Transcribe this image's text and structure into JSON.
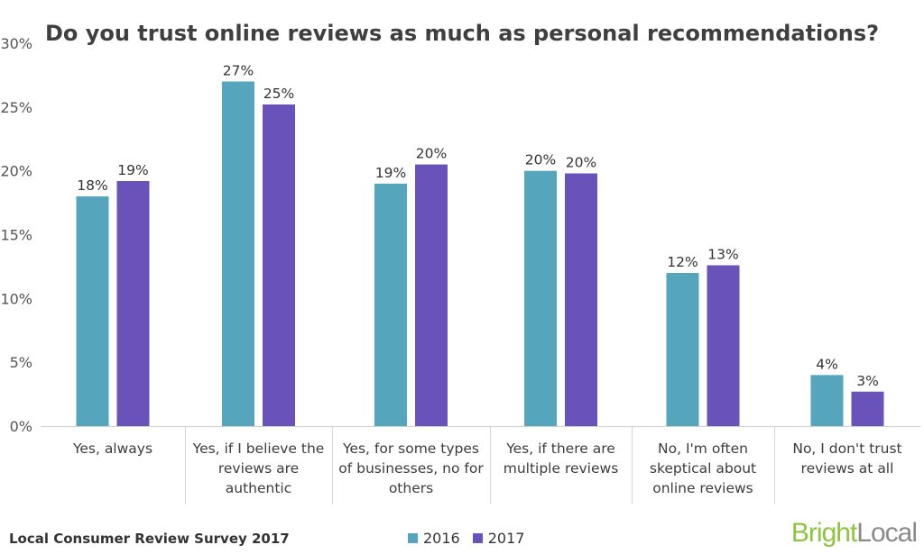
{
  "chart_data": {
    "type": "bar",
    "title": "Do you trust online reviews as much as personal recommendations?",
    "categories": [
      [
        "Yes, always"
      ],
      [
        "Yes, if I believe the",
        "reviews are",
        "authentic"
      ],
      [
        "Yes, for some types",
        "of businesses, no for",
        "others"
      ],
      [
        "Yes, if there are",
        "multiple reviews"
      ],
      [
        "No, I'm often",
        "skeptical about",
        "online reviews"
      ],
      [
        "No, I don't trust",
        "reviews at all"
      ]
    ],
    "series": [
      {
        "name": "2016",
        "color": "#55a5bd",
        "values": [
          18,
          27,
          19,
          20,
          12,
          4
        ],
        "labels": [
          "18%",
          "27%",
          "19%",
          "20%",
          "12%",
          "4%"
        ]
      },
      {
        "name": "2017",
        "color": "#6a52bb",
        "values": [
          19.2,
          25.2,
          20.5,
          19.8,
          12.6,
          2.7
        ],
        "labels": [
          "19%",
          "25%",
          "20%",
          "20%",
          "13%",
          "3%"
        ]
      }
    ],
    "ylim": [
      0,
      30
    ],
    "yticks": [
      0,
      5,
      10,
      15,
      20,
      25,
      30
    ],
    "ytick_labels": [
      "0%",
      "5%",
      "10%",
      "15%",
      "20%",
      "25%",
      "30%"
    ],
    "grid": false,
    "legend_position": "bottom-center"
  },
  "footer": {
    "source": "Local Consumer Review Survey 2017",
    "legend_2016": "2016",
    "legend_2017": "2017",
    "brand_part1": "Bright",
    "brand_part2": "Local"
  }
}
